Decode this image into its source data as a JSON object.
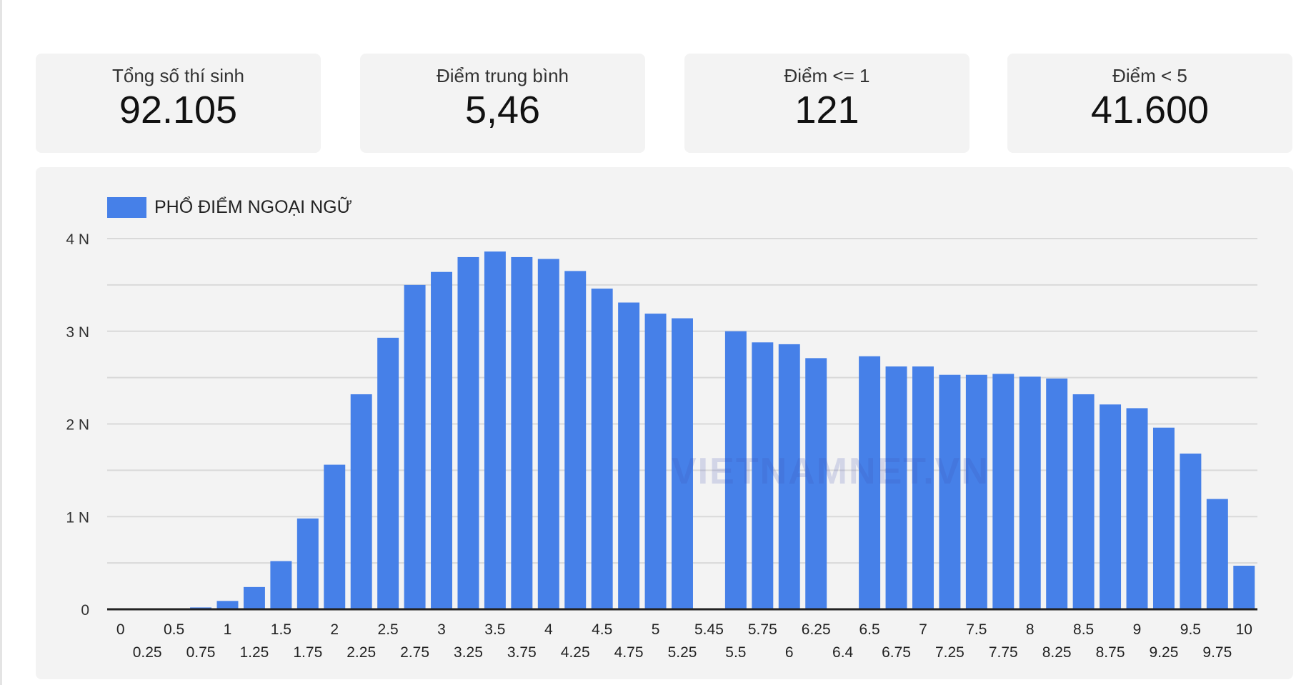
{
  "stats": [
    {
      "label": "Tổng số thí sinh",
      "value": "92.105"
    },
    {
      "label": "Điểm trung bình",
      "value": "5,46"
    },
    {
      "label": "Điểm <= 1",
      "value": "121"
    },
    {
      "label": "Điểm < 5",
      "value": "41.600"
    }
  ],
  "watermark": "VIETNAMNET.VN",
  "colors": {
    "bar": "#4680e8",
    "grid": "#d9d9d9",
    "axis": "#222222"
  },
  "chart_data": {
    "type": "bar",
    "title": "",
    "legend": [
      "PHỔ ĐIỂM NGOẠI NGỮ"
    ],
    "legend_position": "top-left",
    "xlabel": "",
    "ylabel": "",
    "ylim": [
      0,
      4000
    ],
    "yticks": [
      {
        "v": 0,
        "label": "0"
      },
      {
        "v": 1000,
        "label": "1 N"
      },
      {
        "v": 2000,
        "label": "2 N"
      },
      {
        "v": 3000,
        "label": "3 N"
      },
      {
        "v": 4000,
        "label": "4 N"
      }
    ],
    "grid": true,
    "categories": [
      "0",
      "0.25",
      "0.5",
      "0.75",
      "1",
      "1.25",
      "1.5",
      "1.75",
      "2",
      "2.25",
      "2.5",
      "2.75",
      "3",
      "3.25",
      "3.5",
      "3.75",
      "4",
      "4.25",
      "4.5",
      "4.75",
      "5",
      "5.25",
      "5.45",
      "5.5",
      "5.75",
      "6",
      "6.25",
      "6.4",
      "6.5",
      "6.75",
      "7",
      "7.25",
      "7.5",
      "7.75",
      "8",
      "8.25",
      "8.5",
      "8.75",
      "9",
      "9.25",
      "9.5",
      "9.75",
      "10"
    ],
    "series": [
      {
        "name": "PHỔ ĐIỂM NGOẠI NGỮ",
        "values": [
          0,
          0,
          0,
          20,
          90,
          240,
          520,
          980,
          1560,
          2320,
          2930,
          3500,
          3640,
          3800,
          3860,
          3800,
          3780,
          3650,
          3460,
          3310,
          3190,
          3140,
          0,
          3000,
          2880,
          2860,
          2710,
          0,
          2730,
          2620,
          2620,
          2530,
          2530,
          2540,
          2510,
          2490,
          2320,
          2210,
          2170,
          1960,
          1680,
          1190,
          470
        ]
      }
    ]
  }
}
